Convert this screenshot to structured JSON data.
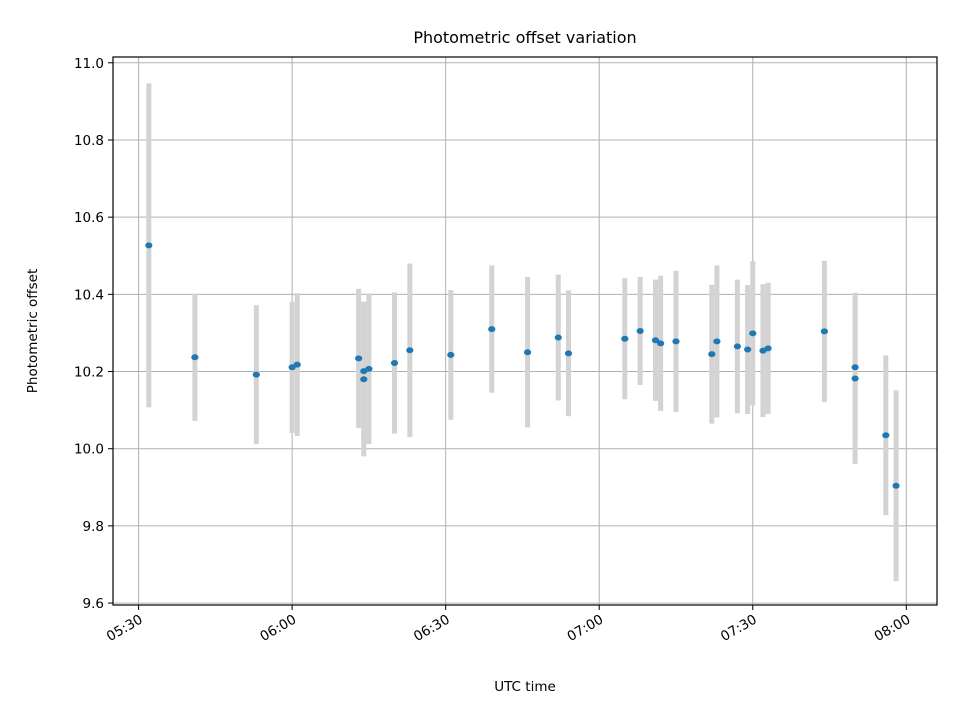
{
  "chart_data": {
    "type": "scatter",
    "title": "Photometric offset variation",
    "xlabel": "UTC time",
    "ylabel": "Photometric offset",
    "x_ticks": [
      "05:30",
      "06:00",
      "06:30",
      "07:00",
      "07:30",
      "08:00"
    ],
    "y_ticks": [
      "9.6",
      "9.8",
      "10.0",
      "10.2",
      "10.4",
      "10.6",
      "10.8",
      "11.0"
    ],
    "xlim": [
      "05:25",
      "08:06"
    ],
    "ylim": [
      9.595,
      11.015
    ],
    "grid": true,
    "colors": {
      "marker": "#1f77b4",
      "errorbar": "#d3d3d3",
      "grid": "#b0b0b0"
    },
    "points": [
      {
        "x": "05:32",
        "y": 10.527,
        "err": 0.42
      },
      {
        "x": "05:41",
        "y": 10.237,
        "err": 0.165
      },
      {
        "x": "05:53",
        "y": 10.192,
        "err": 0.18
      },
      {
        "x": "06:00",
        "y": 10.211,
        "err": 0.17
      },
      {
        "x": "06:01",
        "y": 10.218,
        "err": 0.185
      },
      {
        "x": "06:13",
        "y": 10.234,
        "err": 0.18
      },
      {
        "x": "06:14",
        "y": 10.18,
        "err": 0.2
      },
      {
        "x": "06:14",
        "y": 10.201,
        "err": 0.18
      },
      {
        "x": "06:15",
        "y": 10.207,
        "err": 0.195
      },
      {
        "x": "06:20",
        "y": 10.222,
        "err": 0.183
      },
      {
        "x": "06:23",
        "y": 10.255,
        "err": 0.225
      },
      {
        "x": "06:31",
        "y": 10.243,
        "err": 0.168
      },
      {
        "x": "06:39",
        "y": 10.31,
        "err": 0.165
      },
      {
        "x": "06:46",
        "y": 10.25,
        "err": 0.195
      },
      {
        "x": "06:52",
        "y": 10.288,
        "err": 0.163
      },
      {
        "x": "06:54",
        "y": 10.247,
        "err": 0.163
      },
      {
        "x": "07:05",
        "y": 10.285,
        "err": 0.157
      },
      {
        "x": "07:08",
        "y": 10.305,
        "err": 0.14
      },
      {
        "x": "07:11",
        "y": 10.281,
        "err": 0.157
      },
      {
        "x": "07:12",
        "y": 10.273,
        "err": 0.175
      },
      {
        "x": "07:15",
        "y": 10.278,
        "err": 0.183
      },
      {
        "x": "07:22",
        "y": 10.245,
        "err": 0.18
      },
      {
        "x": "07:23",
        "y": 10.278,
        "err": 0.197
      },
      {
        "x": "07:27",
        "y": 10.265,
        "err": 0.173
      },
      {
        "x": "07:29",
        "y": 10.257,
        "err": 0.167
      },
      {
        "x": "07:30",
        "y": 10.299,
        "err": 0.187
      },
      {
        "x": "07:32",
        "y": 10.254,
        "err": 0.172
      },
      {
        "x": "07:33",
        "y": 10.26,
        "err": 0.17
      },
      {
        "x": "07:44",
        "y": 10.304,
        "err": 0.183
      },
      {
        "x": "07:50",
        "y": 10.182,
        "err": 0.222
      },
      {
        "x": "07:50",
        "y": 10.211,
        "err": 0.182
      },
      {
        "x": "07:56",
        "y": 10.035,
        "err": 0.207
      },
      {
        "x": "07:58",
        "y": 9.904,
        "err": 0.247
      }
    ]
  }
}
